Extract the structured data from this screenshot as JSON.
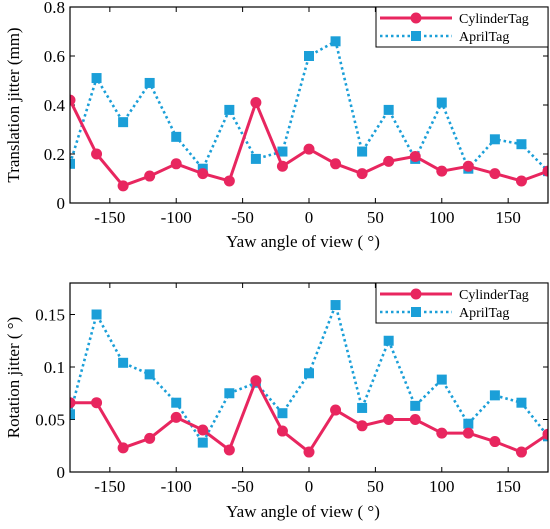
{
  "chart_data": [
    {
      "type": "line",
      "xlabel": "Yaw angle of view ( °)",
      "ylabel": "Translation jitter (mm)",
      "xlim": [
        -180,
        180
      ],
      "ylim": [
        0,
        0.8
      ],
      "xticks": [
        -150,
        -100,
        -50,
        0,
        50,
        100,
        150
      ],
      "yticks": [
        0,
        0.2,
        0.4,
        0.6,
        0.8
      ],
      "ytick_labels": [
        "0",
        "0.2",
        "0.4",
        "0.6",
        "0.8"
      ],
      "legend_position": "top-right",
      "x": [
        -180,
        -160,
        -140,
        -120,
        -100,
        -80,
        -60,
        -40,
        -20,
        0,
        20,
        40,
        60,
        80,
        100,
        120,
        140,
        160,
        180
      ],
      "series": [
        {
          "name": "CylinderTag",
          "color": "#e8265f",
          "marker": "circle",
          "line_style": "solid",
          "values": [
            0.42,
            0.2,
            0.07,
            0.11,
            0.16,
            0.12,
            0.09,
            0.41,
            0.15,
            0.22,
            0.16,
            0.12,
            0.17,
            0.19,
            0.13,
            0.15,
            0.12,
            0.09,
            0.13
          ]
        },
        {
          "name": "AprilTag",
          "color": "#1b9fd8",
          "marker": "square",
          "line_style": "dotted",
          "values": [
            0.16,
            0.51,
            0.33,
            0.49,
            0.27,
            0.14,
            0.38,
            0.18,
            0.21,
            0.6,
            0.66,
            0.21,
            0.38,
            0.18,
            0.41,
            0.14,
            0.26,
            0.24,
            0.13
          ]
        }
      ]
    },
    {
      "type": "line",
      "xlabel": "Yaw angle of view ( °)",
      "ylabel": "Rotation jitter ( °)",
      "xlim": [
        -180,
        180
      ],
      "ylim": [
        0,
        0.18
      ],
      "xticks": [
        -150,
        -100,
        -50,
        0,
        50,
        100,
        150
      ],
      "yticks": [
        0,
        0.05,
        0.1,
        0.15
      ],
      "ytick_labels": [
        "0",
        "0.05",
        "0.1",
        "0.15"
      ],
      "legend_position": "top-right",
      "x": [
        -180,
        -160,
        -140,
        -120,
        -100,
        -80,
        -60,
        -40,
        -20,
        0,
        20,
        40,
        60,
        80,
        100,
        120,
        140,
        160,
        180
      ],
      "series": [
        {
          "name": "CylinderTag",
          "color": "#e8265f",
          "marker": "circle",
          "line_style": "solid",
          "values": [
            0.066,
            0.066,
            0.023,
            0.032,
            0.052,
            0.04,
            0.021,
            0.087,
            0.039,
            0.019,
            0.059,
            0.044,
            0.05,
            0.05,
            0.037,
            0.037,
            0.029,
            0.019,
            0.036
          ]
        },
        {
          "name": "AprilTag",
          "color": "#1b9fd8",
          "marker": "square",
          "line_style": "dotted",
          "values": [
            0.055,
            0.15,
            0.104,
            0.093,
            0.066,
            0.028,
            0.075,
            0.085,
            0.056,
            0.094,
            0.159,
            0.061,
            0.125,
            0.063,
            0.088,
            0.046,
            0.073,
            0.066,
            0.034
          ]
        }
      ]
    }
  ]
}
